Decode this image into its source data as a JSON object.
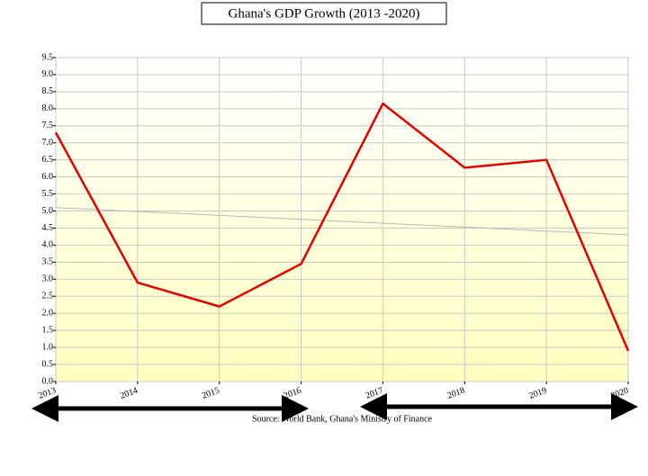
{
  "chart_data": {
    "type": "line",
    "title": "Ghana's GDP Growth (2013 -2020)",
    "source": "Source: World Bank, Ghana's Ministry of Finance",
    "x": [
      2013,
      2014,
      2015,
      2016,
      2017,
      2018,
      2019,
      2020
    ],
    "series": [
      {
        "color": "#e00000",
        "values": [
          7.3,
          2.9,
          2.2,
          3.45,
          8.15,
          6.27,
          6.5,
          0.9
        ]
      }
    ],
    "trend": {
      "start": 5.1,
      "end": 4.3,
      "color": "#b8b8b8"
    },
    "xlim": [
      2013,
      2020
    ],
    "xticks": [
      2013,
      2014,
      2015,
      2016,
      2017,
      2018,
      2019,
      2020
    ],
    "ylim": [
      0,
      9.5
    ],
    "yticks": [
      {
        "value": 0,
        "label": "0.0"
      },
      0.5,
      {
        "value": 1,
        "label": "1.0"
      },
      1.5,
      {
        "value": 2,
        "label": "2.0"
      },
      2.5,
      {
        "value": 3,
        "label": "3.0"
      },
      3.5,
      {
        "value": 4,
        "label": "4.0"
      },
      4.5,
      {
        "value": 5,
        "label": "5.0"
      },
      5.5,
      {
        "value": 6,
        "label": "6.0"
      },
      6.5,
      {
        "value": 7,
        "label": "7.0"
      },
      7.5,
      {
        "value": 8,
        "label": "8.0"
      },
      8.5,
      {
        "value": 9,
        "label": "9.0"
      },
      9.5
    ],
    "grid": true
  }
}
